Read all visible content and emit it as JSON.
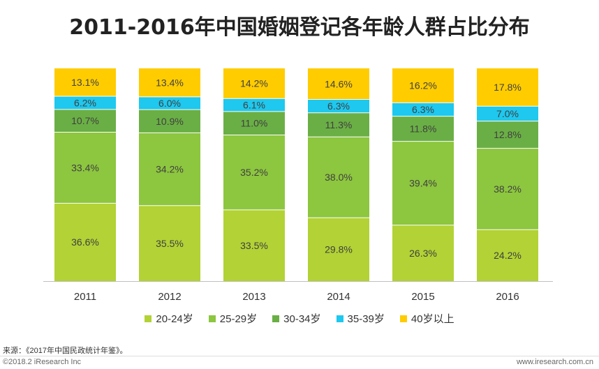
{
  "chart_data": {
    "type": "bar",
    "stacked": true,
    "title": "2011-2016年中国婚姻登记各年龄人群占比分布",
    "categories": [
      "2011",
      "2012",
      "2013",
      "2014",
      "2015",
      "2016"
    ],
    "ylim": [
      0,
      100
    ],
    "series": [
      {
        "name": "20-24岁",
        "color": "#b2d235",
        "values": [
          36.6,
          35.5,
          33.5,
          29.8,
          26.3,
          24.2
        ]
      },
      {
        "name": "25-29岁",
        "color": "#8dc63f",
        "values": [
          33.4,
          34.2,
          35.2,
          38.0,
          39.4,
          38.2
        ]
      },
      {
        "name": "30-34岁",
        "color": "#6aaf45",
        "values": [
          10.7,
          10.9,
          11.0,
          11.3,
          11.8,
          12.8
        ]
      },
      {
        "name": "35-39岁",
        "color": "#1ec8ee",
        "values": [
          6.2,
          6.0,
          6.1,
          6.3,
          6.3,
          7.0
        ]
      },
      {
        "name": "40岁以上",
        "color": "#ffcc00",
        "values": [
          13.1,
          13.4,
          14.2,
          14.6,
          16.2,
          17.8
        ]
      }
    ]
  },
  "footer": {
    "source": "来源：《2017年中国民政统计年鉴》。",
    "copyright": "©2018.2 iResearch Inc",
    "website": "www.iresearch.com.cn"
  }
}
